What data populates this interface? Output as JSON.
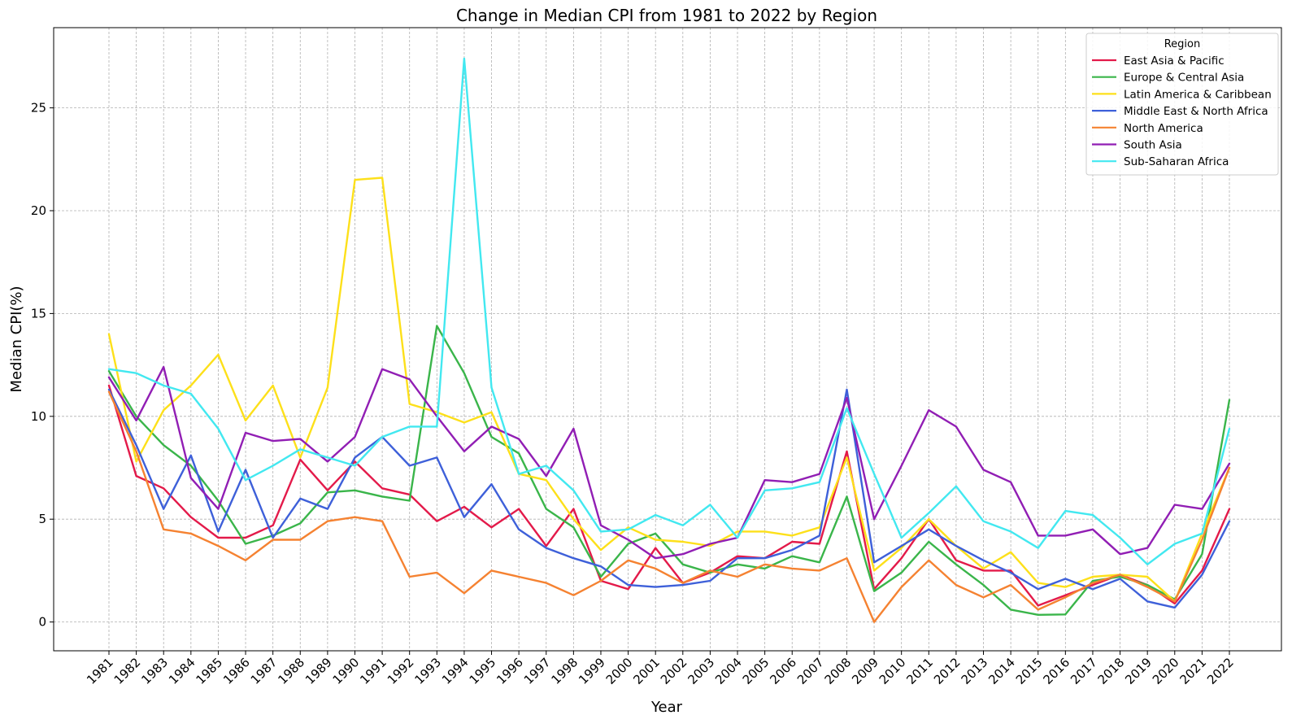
{
  "chart_data": {
    "type": "line",
    "title": "Change in Median CPI from 1981 to 2022 by Region",
    "xlabel": "Year",
    "ylabel": "Median CPI(%)",
    "ylim": [
      -1.4,
      28.9
    ],
    "yticks": [
      0,
      5,
      10,
      15,
      20,
      25
    ],
    "grid": true,
    "legend_title": "Region",
    "legend_position": "top-right",
    "x": [
      1981,
      1982,
      1983,
      1984,
      1985,
      1986,
      1987,
      1988,
      1989,
      1990,
      1991,
      1992,
      1993,
      1994,
      1995,
      1996,
      1997,
      1998,
      1999,
      2000,
      2001,
      2002,
      2003,
      2004,
      2005,
      2006,
      2007,
      2008,
      2009,
      2010,
      2011,
      2012,
      2013,
      2014,
      2015,
      2016,
      2017,
      2018,
      2019,
      2020,
      2021,
      2022
    ],
    "series": [
      {
        "name": "East Asia & Pacific",
        "color": "#e31a4a",
        "values": [
          11.5,
          7.1,
          6.5,
          5.1,
          4.1,
          4.1,
          4.7,
          7.9,
          6.4,
          7.8,
          6.5,
          6.2,
          4.9,
          5.6,
          4.6,
          5.5,
          3.7,
          5.5,
          2.0,
          1.6,
          3.6,
          1.9,
          2.4,
          3.2,
          3.1,
          3.9,
          3.8,
          8.3,
          1.6,
          3.1,
          5.0,
          3.0,
          2.5,
          2.5,
          0.8,
          1.3,
          1.8,
          2.3,
          1.8,
          0.9,
          2.5,
          5.5
        ]
      },
      {
        "name": "Europe & Central Asia",
        "color": "#3ab54a",
        "values": [
          12.2,
          10.0,
          8.6,
          7.6,
          5.9,
          3.8,
          4.2,
          4.8,
          6.3,
          6.4,
          6.1,
          5.9,
          14.4,
          12.1,
          9.0,
          8.2,
          5.5,
          4.6,
          2.2,
          3.8,
          4.3,
          2.8,
          2.4,
          2.8,
          2.6,
          3.2,
          2.9,
          6.1,
          1.5,
          2.4,
          3.9,
          2.8,
          1.8,
          0.6,
          0.35,
          0.37,
          2.0,
          2.2,
          1.8,
          1.1,
          3.3,
          10.8
        ]
      },
      {
        "name": "Latin America & Caribbean",
        "color": "#fde01a",
        "values": [
          14.0,
          7.8,
          10.3,
          11.5,
          13.0,
          9.8,
          11.5,
          8.0,
          11.4,
          21.5,
          21.6,
          10.6,
          10.2,
          9.7,
          10.2,
          7.2,
          6.9,
          5.0,
          3.5,
          4.6,
          4.0,
          3.9,
          3.7,
          4.4,
          4.4,
          4.2,
          4.6,
          8.0,
          2.5,
          3.6,
          5.0,
          3.7,
          2.6,
          3.4,
          1.9,
          1.7,
          2.2,
          2.3,
          2.2,
          1.0,
          4.3,
          7.5
        ]
      },
      {
        "name": "Middle East & North Africa",
        "color": "#3e60d9",
        "values": [
          11.3,
          8.6,
          5.5,
          8.1,
          4.4,
          7.4,
          4.1,
          6.0,
          5.5,
          8.0,
          9.0,
          7.6,
          8.0,
          5.1,
          6.7,
          4.5,
          3.6,
          3.1,
          2.7,
          1.8,
          1.7,
          1.8,
          2.0,
          3.1,
          3.1,
          3.5,
          4.2,
          11.3,
          2.9,
          3.7,
          4.5,
          3.7,
          3.0,
          2.4,
          1.6,
          2.1,
          1.6,
          2.1,
          1.0,
          0.7,
          2.3,
          4.9
        ]
      },
      {
        "name": "North America",
        "color": "#f58231",
        "values": [
          11.2,
          8.3,
          4.5,
          4.3,
          3.7,
          3.0,
          4.0,
          4.0,
          4.9,
          5.1,
          4.9,
          2.2,
          2.4,
          1.4,
          2.5,
          2.2,
          1.9,
          1.3,
          2.0,
          3.0,
          2.6,
          1.9,
          2.5,
          2.2,
          2.8,
          2.6,
          2.5,
          3.1,
          0.0,
          1.7,
          3.0,
          1.8,
          1.2,
          1.8,
          0.6,
          1.2,
          1.9,
          2.3,
          1.7,
          1.0,
          4.0,
          7.5
        ]
      },
      {
        "name": "South Asia",
        "color": "#911eb4",
        "values": [
          11.9,
          9.8,
          12.4,
          7.0,
          5.5,
          9.2,
          8.8,
          8.9,
          7.8,
          9.0,
          12.3,
          11.8,
          10.0,
          8.3,
          9.5,
          8.9,
          7.1,
          9.4,
          4.7,
          4.0,
          3.1,
          3.3,
          3.8,
          4.1,
          6.9,
          6.8,
          7.2,
          10.9,
          5.0,
          7.6,
          10.3,
          9.5,
          7.4,
          6.8,
          4.2,
          4.2,
          4.5,
          3.3,
          3.6,
          5.7,
          5.5,
          7.7
        ]
      },
      {
        "name": "Sub-Saharan Africa",
        "color": "#42e8f0",
        "values": [
          12.3,
          12.1,
          11.5,
          11.1,
          9.4,
          6.9,
          7.6,
          8.4,
          8.0,
          7.6,
          9.0,
          9.5,
          9.5,
          27.4,
          11.4,
          7.2,
          7.6,
          6.4,
          4.4,
          4.5,
          5.2,
          4.7,
          5.7,
          4.1,
          6.4,
          6.5,
          6.8,
          10.4,
          7.2,
          4.1,
          5.3,
          6.6,
          4.9,
          4.4,
          3.6,
          5.4,
          5.2,
          4.1,
          2.8,
          3.8,
          4.3,
          9.4
        ]
      }
    ]
  }
}
